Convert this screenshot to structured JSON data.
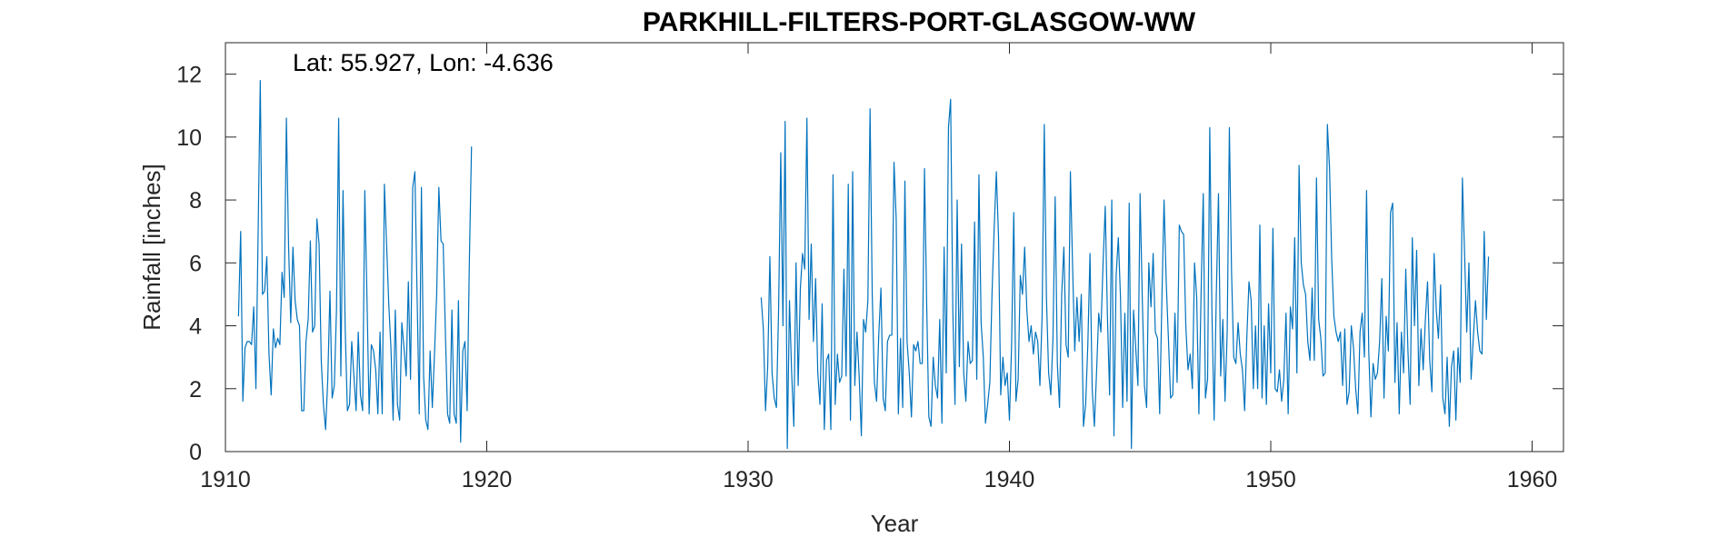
{
  "chart_data": {
    "type": "line",
    "title": "PARKHILL-FILTERS-PORT-GLASGOW-WW",
    "annotation": "Lat: 55.927, Lon: -4.636",
    "xlabel": "Year",
    "ylabel": "Rainfall [inches]",
    "xlim": [
      1910,
      1961.2
    ],
    "ylim": [
      0,
      13
    ],
    "xticks": [
      1910,
      1920,
      1930,
      1940,
      1950,
      1960
    ],
    "yticks": [
      0,
      2,
      4,
      6,
      8,
      10,
      12
    ],
    "grid": false,
    "box": true,
    "series_color": "#0072BD",
    "series": [
      {
        "x_start": 1910.5,
        "x_step": 0.08333,
        "values": [
          4.3,
          7.0,
          1.6,
          3.3,
          3.5,
          3.5,
          3.4,
          4.6,
          2.0,
          6.9,
          11.8,
          5.0,
          5.1,
          6.2,
          3.1,
          1.8,
          3.9,
          3.3,
          3.6,
          3.4,
          5.7,
          4.9,
          10.6,
          6.5,
          4.1,
          6.5,
          4.8,
          4.2,
          4.0,
          1.3,
          1.3,
          3.5,
          4.2,
          6.7,
          3.8,
          4.0,
          7.4,
          6.6,
          2.9,
          1.5,
          0.7,
          2.3,
          5.1,
          1.7,
          2.1,
          4.5,
          10.6,
          2.4,
          8.3,
          3.9,
          1.3,
          1.5,
          3.5,
          2.4,
          1.3,
          3.8,
          1.8,
          1.3,
          8.3,
          4.9,
          1.2,
          3.4,
          3.2,
          2.6,
          1.2,
          3.8,
          1.2,
          8.5,
          6.6,
          4.7,
          3.3,
          1.0,
          4.5,
          1.5,
          1.0,
          4.1,
          3.3,
          2.4,
          5.4,
          2.3,
          8.4,
          8.9,
          5.0,
          1.2,
          8.4,
          2.4,
          1.0,
          0.7,
          3.2,
          1.4,
          3.1,
          5.0,
          8.4,
          6.7,
          6.6,
          3.8,
          1.2,
          0.9,
          4.5,
          1.2,
          0.9,
          4.8,
          0.3,
          3.2,
          3.5,
          1.3,
          6.0,
          9.7
        ]
      },
      {
        "x_start": 1930.5,
        "x_step": 0.08333,
        "values": [
          4.9,
          3.9,
          1.3,
          2.7,
          6.2,
          2.5,
          1.7,
          1.4,
          4.5,
          9.5,
          4.0,
          10.5,
          0.1,
          4.8,
          2.5,
          0.8,
          6.0,
          2.1,
          5.2,
          6.3,
          5.8,
          10.6,
          4.2,
          6.6,
          3.5,
          5.5,
          2.5,
          1.5,
          4.7,
          0.7,
          2.9,
          3.1,
          0.7,
          8.8,
          1.5,
          3.1,
          2.2,
          2.4,
          5.8,
          2.4,
          8.5,
          1.0,
          8.9,
          2.1,
          3.8,
          2.4,
          0.5,
          4.2,
          3.8,
          4.8,
          10.9,
          5.0,
          2.2,
          1.6,
          3.7,
          5.2,
          1.7,
          1.3,
          3.5,
          3.7,
          3.7,
          9.2,
          7.4,
          1.2,
          3.6,
          1.4,
          8.6,
          3.5,
          2.5,
          1.1,
          3.4,
          3.2,
          3.5,
          2.8,
          2.8,
          9.0,
          4.7,
          1.1,
          0.8,
          3.0,
          2.1,
          1.7,
          4.2,
          0.9,
          6.5,
          2.5,
          10.3,
          11.2,
          4.5,
          1.5,
          8.0,
          2.7,
          6.6,
          2.5,
          1.6,
          3.5,
          2.8,
          2.9,
          7.3,
          2.3,
          8.8,
          4.1,
          3.0,
          0.9,
          1.5,
          2.2,
          5.0,
          7.1,
          8.9,
          6.8,
          1.8,
          3.0,
          2.1,
          2.5,
          1.0,
          3.4,
          7.6,
          1.6,
          2.3,
          5.6,
          5.0,
          6.5,
          4.5,
          3.5,
          4.0,
          3.1,
          3.8,
          3.5,
          2.1,
          4.3,
          10.4,
          4.9,
          2.5,
          1.8,
          3.6,
          8.1,
          2.8,
          1.4,
          5.0,
          6.5,
          3.4,
          3.0,
          8.9,
          5.9,
          3.2,
          4.9,
          3.5,
          5.0,
          0.8,
          1.5,
          3.4,
          6.3,
          2.0,
          0.8,
          2.5,
          4.4,
          3.8,
          6.0,
          7.8,
          4.3,
          1.8,
          8.0,
          0.5,
          5.6,
          6.8,
          4.9,
          1.4,
          4.4,
          1.6,
          7.9,
          0.1,
          4.5,
          3.3,
          2.1,
          8.2,
          4.9,
          2.1,
          1.4,
          6.0,
          4.6,
          6.3,
          3.8,
          3.6,
          1.2,
          4.8,
          8.0,
          5.4,
          3.6,
          1.7,
          1.8,
          4.4,
          2.2,
          7.2,
          7.0,
          6.9,
          4.0,
          2.6,
          3.1,
          2.0,
          6.0,
          4.9,
          1.2,
          5.0,
          8.2,
          1.7,
          2.3,
          10.3,
          4.4,
          1.0,
          5.0,
          8.2,
          2.4,
          4.2,
          1.6,
          3.8,
          10.3,
          5.7,
          3.0,
          2.8,
          4.1,
          3.1,
          2.6,
          1.3,
          3.6,
          5.4,
          4.8,
          2.0,
          4.0,
          2.0,
          7.2,
          1.7,
          4.0,
          1.5,
          4.7,
          2.5,
          7.1,
          2.0,
          1.9,
          2.6,
          1.6,
          2.3,
          4.4,
          1.2,
          4.6,
          3.9,
          6.8,
          2.5,
          9.1,
          6.0,
          5.3,
          5.0,
          3.5,
          2.9,
          5.2,
          2.9,
          8.7,
          4.2,
          3.6,
          2.4,
          2.5,
          10.4,
          9.0,
          6.1,
          4.3,
          3.8,
          3.5,
          3.8,
          2.1,
          3.9,
          1.5,
          1.9,
          4.0,
          3.3,
          2.0,
          1.2,
          3.8,
          4.4,
          3.0,
          8.3,
          3.2,
          1.1,
          2.8,
          2.3,
          2.5,
          3.5,
          5.5,
          1.7,
          4.3,
          3.2,
          7.6,
          7.9,
          2.2,
          4.1,
          1.2,
          3.8,
          2.5,
          5.8,
          3.2,
          1.5,
          6.8,
          4.0,
          6.4,
          2.1,
          3.9,
          2.6,
          4.2,
          5.4,
          2.9,
          1.9,
          6.3,
          4.5,
          3.6,
          5.3,
          1.7,
          1.2,
          3.0,
          0.8,
          2.7,
          3.2,
          1.0,
          3.3,
          2.2,
          8.7,
          6.3,
          3.8,
          6.0,
          2.3,
          3.6,
          4.8,
          3.8,
          3.2,
          3.1,
          7.0,
          4.2,
          6.2
        ]
      }
    ]
  }
}
